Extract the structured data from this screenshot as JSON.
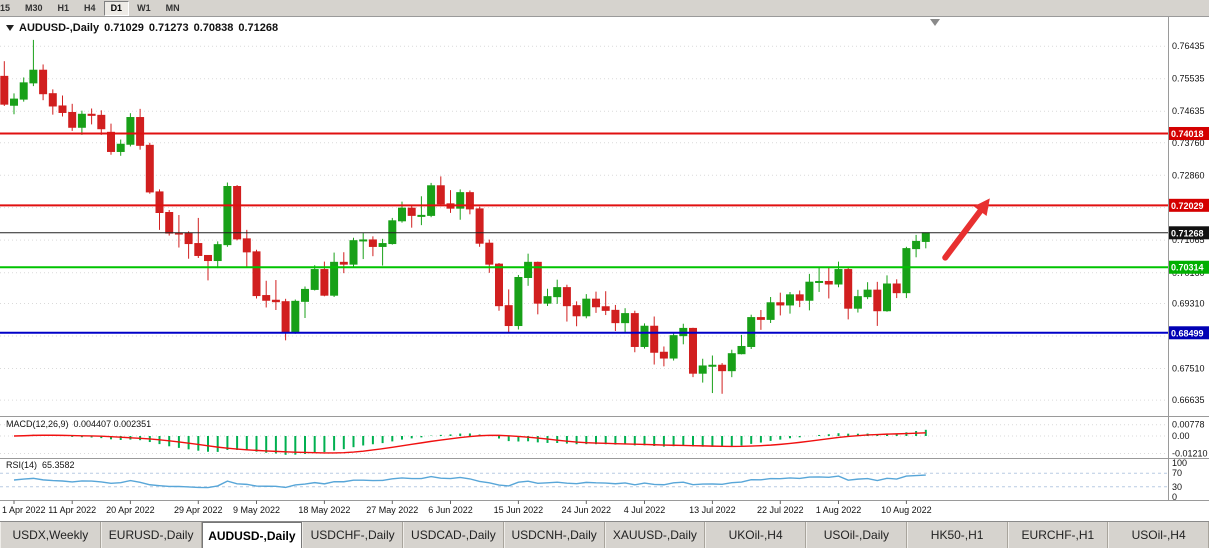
{
  "toolbar": {
    "timeframes": [
      "15",
      "M30",
      "H1",
      "H4",
      "D1",
      "W1",
      "MN"
    ],
    "active": "D1"
  },
  "header": {
    "symbol": "AUDUSD-,Daily",
    "open": "0.71029",
    "high": "0.71273",
    "low": "0.70838",
    "close": "0.71268"
  },
  "chart_data": {
    "type": "candlestick",
    "symbol": "AUDUSD",
    "period": "Daily",
    "axis_range": {
      "max": 0.7705,
      "min": 0.6625
    },
    "price_axis_ticks": [
      "0.76435",
      "0.75535",
      "0.74635",
      "0.73760",
      "0.72860",
      "0.71965",
      "0.71065",
      "0.70160",
      "0.69310",
      "0.68410",
      "0.67510",
      "0.66635"
    ],
    "horizontal_lines": [
      {
        "label": "0.74018",
        "price": 0.74018,
        "color": "#e01010",
        "badge": "#d40000",
        "width": 2
      },
      {
        "label": "0.72029",
        "price": 0.72029,
        "color": "#e01010",
        "badge": "#d40000",
        "width": 2
      },
      {
        "label": "0.71268",
        "price": 0.71268,
        "color": "#222222",
        "badge": "#111111",
        "width": 1
      },
      {
        "label": "0.70314",
        "price": 0.70314,
        "color": "#00c400",
        "badge": "#00b000",
        "width": 2
      },
      {
        "label": "0.68499",
        "price": 0.68499,
        "color": "#0000c8",
        "badge": "#0000b4",
        "width": 2
      }
    ],
    "candle_colors": {
      "bull": "#18a018",
      "bear": "#d11f1f"
    },
    "left_edge_candle": [
      0.756,
      0.7602,
      0.7478,
      0.7483
    ],
    "candles": [
      [
        0.748,
        0.7513,
        0.7455,
        0.7497
      ],
      [
        0.7497,
        0.7557,
        0.749,
        0.7542
      ],
      [
        0.7542,
        0.7661,
        0.7533,
        0.7577
      ],
      [
        0.7577,
        0.7593,
        0.7494,
        0.7512
      ],
      [
        0.7512,
        0.7524,
        0.7454,
        0.7478
      ],
      [
        0.7478,
        0.7507,
        0.7449,
        0.746
      ],
      [
        0.746,
        0.7484,
        0.7409,
        0.7419
      ],
      [
        0.7419,
        0.7465,
        0.7398,
        0.7455
      ],
      [
        0.7455,
        0.7471,
        0.7427,
        0.7452
      ],
      [
        0.7452,
        0.7466,
        0.7398,
        0.7415
      ],
      [
        0.7405,
        0.7429,
        0.7343,
        0.7352
      ],
      [
        0.7352,
        0.7385,
        0.734,
        0.7372
      ],
      [
        0.7372,
        0.7458,
        0.7366,
        0.7446
      ],
      [
        0.7446,
        0.747,
        0.7357,
        0.7369
      ],
      [
        0.7369,
        0.7376,
        0.7235,
        0.724
      ],
      [
        0.724,
        0.7247,
        0.7135,
        0.7183
      ],
      [
        0.7183,
        0.719,
        0.7119,
        0.7126
      ],
      [
        0.7126,
        0.7176,
        0.7086,
        0.7125
      ],
      [
        0.7125,
        0.7131,
        0.7055,
        0.7097
      ],
      [
        0.7097,
        0.7168,
        0.7057,
        0.7064
      ],
      [
        0.7064,
        0.7065,
        0.6995,
        0.705
      ],
      [
        0.705,
        0.7103,
        0.7029,
        0.7094
      ],
      [
        0.7094,
        0.7266,
        0.7088,
        0.7255
      ],
      [
        0.7255,
        0.7259,
        0.7106,
        0.711
      ],
      [
        0.711,
        0.7135,
        0.7031,
        0.7074
      ],
      [
        0.7074,
        0.708,
        0.6945,
        0.6953
      ],
      [
        0.6953,
        0.6994,
        0.692,
        0.694
      ],
      [
        0.694,
        0.6996,
        0.6913,
        0.6936
      ],
      [
        0.6936,
        0.6944,
        0.6829,
        0.6852
      ],
      [
        0.6852,
        0.6942,
        0.6847,
        0.6937
      ],
      [
        0.6937,
        0.6978,
        0.6891,
        0.697
      ],
      [
        0.697,
        0.7037,
        0.6967,
        0.7025
      ],
      [
        0.7025,
        0.7047,
        0.6951,
        0.6954
      ],
      [
        0.6954,
        0.7072,
        0.6949,
        0.7045
      ],
      [
        0.7045,
        0.7073,
        0.7015,
        0.704
      ],
      [
        0.704,
        0.7113,
        0.7033,
        0.7105
      ],
      [
        0.7105,
        0.7126,
        0.7054,
        0.7107
      ],
      [
        0.7107,
        0.7117,
        0.7062,
        0.7089
      ],
      [
        0.7089,
        0.711,
        0.7036,
        0.7097
      ],
      [
        0.7097,
        0.7168,
        0.7094,
        0.716
      ],
      [
        0.716,
        0.7213,
        0.7155,
        0.7195
      ],
      [
        0.7195,
        0.7204,
        0.7141,
        0.7175
      ],
      [
        0.7175,
        0.7228,
        0.7148,
        0.7175
      ],
      [
        0.7175,
        0.7265,
        0.717,
        0.7257
      ],
      [
        0.7257,
        0.7283,
        0.72,
        0.7207
      ],
      [
        0.7207,
        0.7245,
        0.7182,
        0.7195
      ],
      [
        0.7195,
        0.7247,
        0.7163,
        0.7238
      ],
      [
        0.7238,
        0.7244,
        0.7178,
        0.7193
      ],
      [
        0.7193,
        0.7199,
        0.7088,
        0.7098
      ],
      [
        0.7098,
        0.7108,
        0.7016,
        0.704
      ],
      [
        0.704,
        0.7043,
        0.6911,
        0.6925
      ],
      [
        0.6925,
        0.697,
        0.685,
        0.687
      ],
      [
        0.687,
        0.701,
        0.6859,
        0.7003
      ],
      [
        0.7003,
        0.7069,
        0.698,
        0.7045
      ],
      [
        0.7045,
        0.7047,
        0.6901,
        0.6932
      ],
      [
        0.6932,
        0.6972,
        0.6924,
        0.695
      ],
      [
        0.695,
        0.6997,
        0.693,
        0.6975
      ],
      [
        0.6975,
        0.6983,
        0.6881,
        0.6925
      ],
      [
        0.6925,
        0.6937,
        0.6868,
        0.6897
      ],
      [
        0.6897,
        0.6957,
        0.689,
        0.6943
      ],
      [
        0.6943,
        0.6964,
        0.6905,
        0.6922
      ],
      [
        0.6922,
        0.6965,
        0.6899,
        0.6912
      ],
      [
        0.6912,
        0.6927,
        0.6855,
        0.6878
      ],
      [
        0.6878,
        0.6918,
        0.6851,
        0.6903
      ],
      [
        0.6903,
        0.6911,
        0.6796,
        0.6812
      ],
      [
        0.6812,
        0.6876,
        0.6806,
        0.6868
      ],
      [
        0.6868,
        0.6895,
        0.6762,
        0.6796
      ],
      [
        0.6796,
        0.6812,
        0.6757,
        0.678
      ],
      [
        0.678,
        0.6852,
        0.6773,
        0.6842
      ],
      [
        0.6842,
        0.6875,
        0.6818,
        0.6862
      ],
      [
        0.6862,
        0.6864,
        0.6727,
        0.6738
      ],
      [
        0.6738,
        0.6778,
        0.6712,
        0.6758
      ],
      [
        0.6758,
        0.6787,
        0.6683,
        0.676
      ],
      [
        0.676,
        0.6766,
        0.6681,
        0.6745
      ],
      [
        0.6745,
        0.6803,
        0.6727,
        0.6792
      ],
      [
        0.6792,
        0.6844,
        0.679,
        0.6812
      ],
      [
        0.6812,
        0.69,
        0.6805,
        0.6892
      ],
      [
        0.6892,
        0.6913,
        0.6858,
        0.6887
      ],
      [
        0.6887,
        0.6949,
        0.6877,
        0.6933
      ],
      [
        0.6933,
        0.6961,
        0.6898,
        0.6927
      ],
      [
        0.6927,
        0.6963,
        0.6903,
        0.6955
      ],
      [
        0.6955,
        0.6967,
        0.6921,
        0.694
      ],
      [
        0.694,
        0.7013,
        0.6912,
        0.699
      ],
      [
        0.699,
        0.7033,
        0.6963,
        0.6992
      ],
      [
        0.6992,
        0.7032,
        0.6945,
        0.6985
      ],
      [
        0.6985,
        0.7047,
        0.6976,
        0.7025
      ],
      [
        0.7025,
        0.7031,
        0.6887,
        0.6918
      ],
      [
        0.6918,
        0.6969,
        0.6906,
        0.695
      ],
      [
        0.695,
        0.699,
        0.6943,
        0.6968
      ],
      [
        0.6968,
        0.6991,
        0.6869,
        0.6911
      ],
      [
        0.6911,
        0.7009,
        0.6908,
        0.6985
      ],
      [
        0.6985,
        0.6998,
        0.6946,
        0.6961
      ],
      [
        0.6961,
        0.7088,
        0.6946,
        0.7083
      ],
      [
        0.7083,
        0.7121,
        0.7059,
        0.7103
      ],
      [
        0.71029,
        0.71273,
        0.70838,
        0.71268
      ]
    ],
    "date_ticks": [
      {
        "i": 0,
        "label": "1 Apr 2022"
      },
      {
        "i": 6,
        "label": "11 Apr 2022"
      },
      {
        "i": 12,
        "label": "20 Apr 2022"
      },
      {
        "i": 19,
        "label": "29 Apr 2022"
      },
      {
        "i": 25,
        "label": "9 May 2022"
      },
      {
        "i": 32,
        "label": "18 May 2022"
      },
      {
        "i": 39,
        "label": "27 May 2022"
      },
      {
        "i": 45,
        "label": "6 Jun 2022"
      },
      {
        "i": 52,
        "label": "15 Jun 2022"
      },
      {
        "i": 59,
        "label": "24 Jun 2022"
      },
      {
        "i": 65,
        "label": "4 Jul 2022"
      },
      {
        "i": 72,
        "label": "13 Jul 2022"
      },
      {
        "i": 79,
        "label": "22 Jul 2022"
      },
      {
        "i": 85,
        "label": "1 Aug 2022"
      },
      {
        "i": 92,
        "label": "10 Aug 2022"
      }
    ],
    "indicators": {
      "macd": {
        "name": "MACD(12,26,9)",
        "values": "0.004407 0.002351",
        "fast": 12,
        "slow": 26,
        "signal": 9,
        "axis_ticks": [
          "0.00778",
          "0.00",
          "-0.01210"
        ],
        "histogram_color": "#00b050",
        "signal_color": "#f01010"
      },
      "rsi": {
        "name": "RSI(14)",
        "value": "65.3582",
        "period": 14,
        "axis_ticks": [
          100,
          70,
          30,
          0
        ],
        "levels": [
          70,
          30
        ],
        "line_color": "#58a6d8"
      }
    },
    "annotation_arrow": {
      "color": "#e83030",
      "from": {
        "index": 96.0,
        "price": 0.7058
      },
      "to": {
        "index": 100.6,
        "price": 0.7222
      }
    }
  },
  "tabs": {
    "items": [
      {
        "label": "USDX,Weekly",
        "active": false
      },
      {
        "label": "EURUSD-,Daily",
        "active": false
      },
      {
        "label": "AUDUSD-,Daily",
        "active": true
      },
      {
        "label": "USDCHF-,Daily",
        "active": false
      },
      {
        "label": "USDCAD-,Daily",
        "active": false
      },
      {
        "label": "USDCNH-,Daily",
        "active": false
      },
      {
        "label": "XAUUSD-,Daily",
        "active": false
      },
      {
        "label": "UKOil-,H4",
        "active": false
      },
      {
        "label": "USOil-,Daily",
        "active": false
      },
      {
        "label": "HK50-,H1",
        "active": false
      },
      {
        "label": "EURCHF-,H1",
        "active": false
      },
      {
        "label": "USOil-,H4",
        "active": false
      }
    ]
  }
}
